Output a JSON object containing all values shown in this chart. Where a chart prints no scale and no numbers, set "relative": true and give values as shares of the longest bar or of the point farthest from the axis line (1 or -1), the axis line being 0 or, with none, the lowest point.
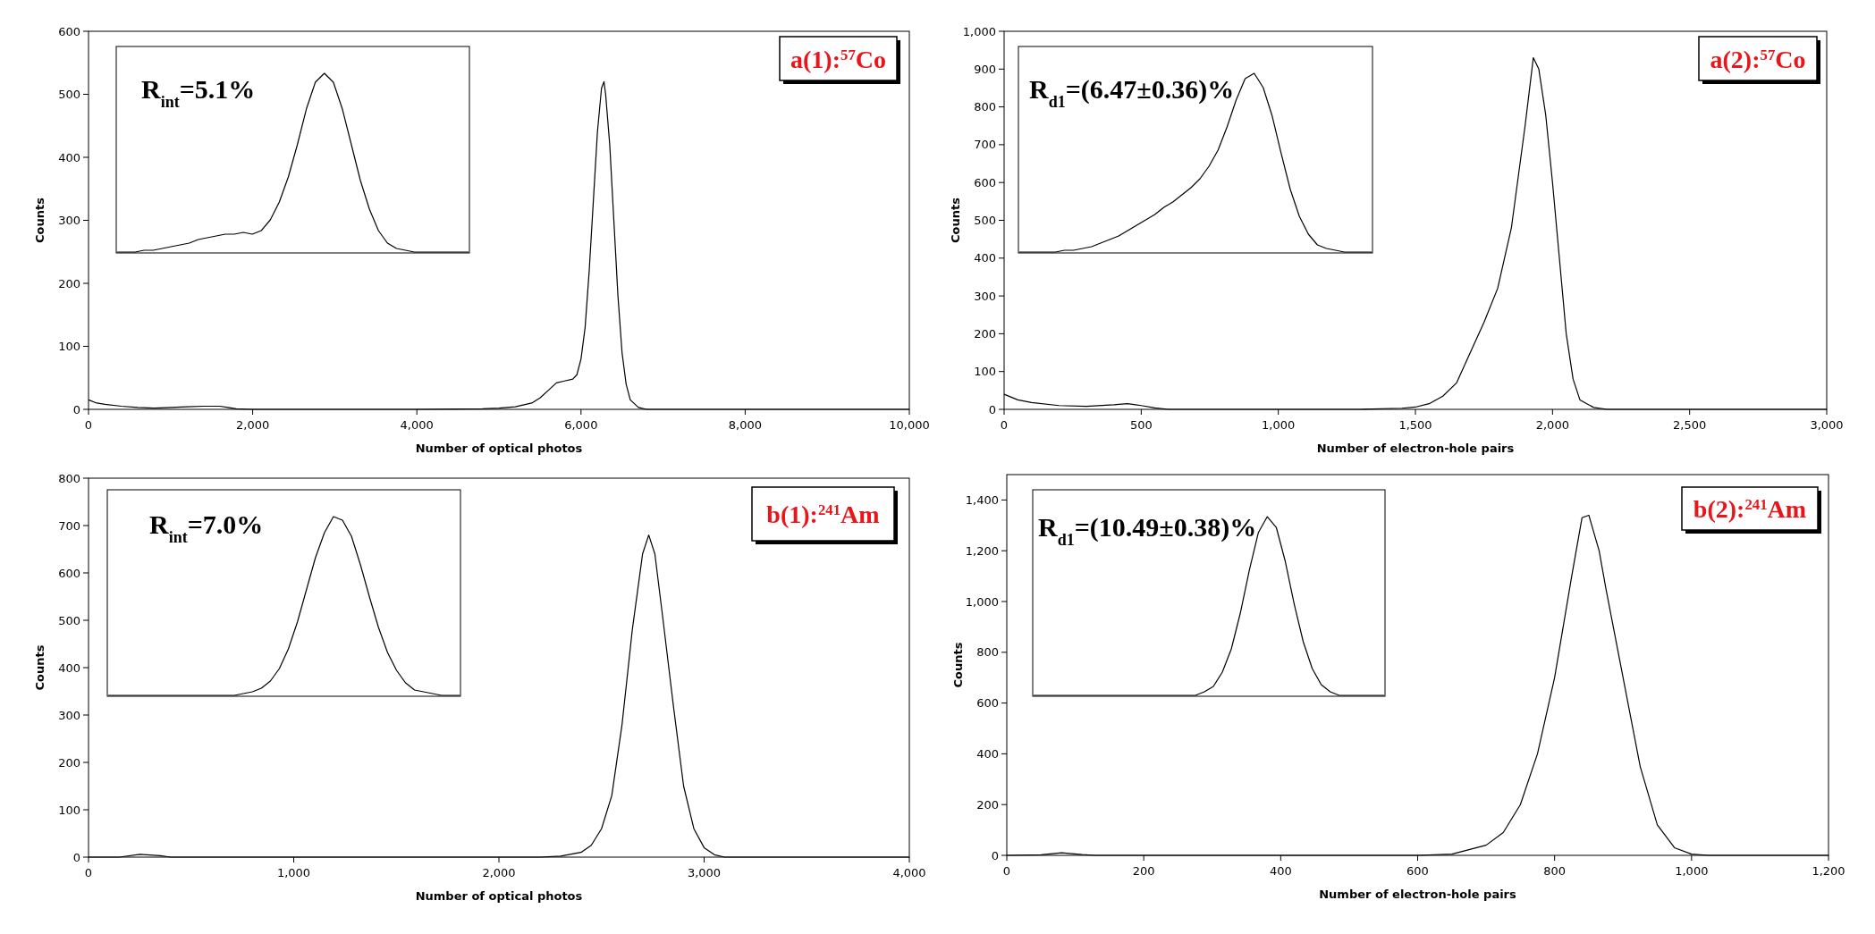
{
  "chart_data": [
    {
      "type": "line",
      "xlabel": "Number of optical photos",
      "ylabel": "Counts",
      "color": "#000000",
      "annotations": [
        "a(1):$^{57}$Co"
      ],
      "x": [
        0,
        100,
        200,
        400,
        600,
        800,
        1000,
        1200,
        1400,
        1600,
        1700,
        1800,
        2000,
        3000,
        4000,
        4800,
        5000,
        5200,
        5400,
        5500,
        5600,
        5700,
        5800,
        5900,
        5950,
        6000,
        6050,
        6100,
        6150,
        6200,
        6250,
        6280,
        6300,
        6350,
        6400,
        6450,
        6500,
        6550,
        6600,
        6700,
        6800,
        7000,
        10000
      ],
      "values": [
        15,
        10,
        8,
        5,
        3,
        2,
        3,
        4,
        5,
        5,
        3,
        1,
        0,
        0,
        0,
        1,
        2,
        4,
        10,
        18,
        30,
        42,
        45,
        48,
        55,
        80,
        130,
        220,
        330,
        440,
        510,
        520,
        500,
        420,
        300,
        180,
        90,
        40,
        15,
        3,
        0,
        0,
        0
      ],
      "xlim": [
        0,
        10000
      ],
      "ylim": [
        0,
        600
      ],
      "xticks": [
        0,
        {
          "value": 2000,
          "label": "2,000"
        },
        {
          "value": 4000,
          "label": "4,000"
        },
        {
          "value": 6000,
          "label": "6,000"
        },
        {
          "value": 8000,
          "label": "8,000"
        },
        {
          "value": 10000,
          "label": "10,000"
        }
      ],
      "yticks": [
        0,
        100,
        200,
        300,
        400,
        500,
        600
      ]
    },
    {
      "type": "line",
      "relative": true,
      "color": "#000000",
      "annotations": [
        "R$_{int}$=5.1%"
      ],
      "categories": [
        null,
        null,
        null,
        null,
        null,
        null,
        null,
        null,
        null,
        null,
        null,
        null,
        null,
        null,
        null,
        null,
        null,
        null,
        null,
        null,
        null,
        null,
        null,
        null,
        null,
        null,
        null,
        null,
        null,
        null,
        null,
        null,
        null,
        null,
        null,
        null,
        null,
        null,
        null,
        null
      ],
      "values": [
        0,
        0,
        0,
        0.01,
        0.01,
        0.02,
        0.03,
        0.04,
        0.05,
        0.07,
        0.08,
        0.09,
        0.1,
        0.1,
        0.11,
        0.1,
        0.12,
        0.18,
        0.28,
        0.42,
        0.6,
        0.8,
        0.95,
        1,
        0.95,
        0.8,
        0.6,
        0.4,
        0.24,
        0.12,
        0.05,
        0.02,
        0.01,
        0,
        0,
        0,
        0,
        0,
        0,
        0
      ]
    },
    {
      "type": "line",
      "xlabel": "Number of electron-hole pairs",
      "ylabel": "Counts",
      "color": "#000000",
      "annotations": [
        "a(2):$^{57}$Co"
      ],
      "x": [
        0,
        50,
        100,
        200,
        300,
        400,
        450,
        500,
        550,
        600,
        1300,
        1450,
        1500,
        1550,
        1600,
        1650,
        1700,
        1750,
        1800,
        1850,
        1900,
        1930,
        1950,
        1975,
        2000,
        2025,
        2050,
        2075,
        2100,
        2150,
        2200,
        3000
      ],
      "values": [
        40,
        25,
        18,
        10,
        8,
        12,
        15,
        10,
        4,
        0,
        0,
        3,
        6,
        15,
        35,
        70,
        150,
        230,
        320,
        480,
        750,
        930,
        900,
        780,
        600,
        400,
        200,
        80,
        25,
        5,
        0,
        0
      ],
      "xlim": [
        0,
        3000
      ],
      "ylim": [
        0,
        1000
      ],
      "xticks": [
        0,
        500,
        {
          "value": 1000,
          "label": "1,000"
        },
        {
          "value": 1500,
          "label": "1,500"
        },
        {
          "value": 2000,
          "label": "2,000"
        },
        {
          "value": 2500,
          "label": "2,500"
        },
        {
          "value": 3000,
          "label": "3,000"
        }
      ],
      "yticks": [
        0,
        100,
        200,
        300,
        400,
        500,
        600,
        700,
        800,
        900,
        {
          "value": 1000,
          "label": "1,000"
        }
      ]
    },
    {
      "type": "line",
      "relative": true,
      "color": "#000000",
      "annotations": [
        "R$_{d1}$=(6.47±0.36)%"
      ],
      "categories": [
        null,
        null,
        null,
        null,
        null,
        null,
        null,
        null,
        null,
        null,
        null,
        null,
        null,
        null,
        null,
        null,
        null,
        null,
        null,
        null,
        null,
        null,
        null,
        null,
        null,
        null,
        null,
        null,
        null,
        null,
        null,
        null,
        null,
        null,
        null,
        null,
        null,
        null,
        null,
        null
      ],
      "values": [
        0,
        0,
        0,
        0,
        0,
        0.01,
        0.01,
        0.02,
        0.03,
        0.05,
        0.07,
        0.09,
        0.12,
        0.15,
        0.18,
        0.21,
        0.25,
        0.28,
        0.32,
        0.36,
        0.41,
        0.48,
        0.57,
        0.7,
        0.85,
        0.97,
        1,
        0.92,
        0.76,
        0.55,
        0.35,
        0.2,
        0.1,
        0.04,
        0.02,
        0.01,
        0,
        0,
        0,
        0
      ]
    },
    {
      "type": "line",
      "xlabel": "Number of optical photos",
      "ylabel": "Counts",
      "color": "#000000",
      "annotations": [
        "b(1):$^{241}$Am"
      ],
      "x": [
        0,
        150,
        250,
        350,
        400,
        2200,
        2300,
        2400,
        2450,
        2500,
        2550,
        2600,
        2650,
        2700,
        2730,
        2760,
        2800,
        2850,
        2900,
        2950,
        3000,
        3050,
        3100,
        4000
      ],
      "values": [
        0,
        0,
        6,
        3,
        0,
        0,
        2,
        10,
        25,
        60,
        130,
        280,
        480,
        640,
        680,
        640,
        500,
        320,
        150,
        60,
        20,
        5,
        0,
        0
      ],
      "xlim": [
        0,
        4000
      ],
      "ylim": [
        0,
        800
      ],
      "xticks": [
        0,
        {
          "value": 1000,
          "label": "1,000"
        },
        {
          "value": 2000,
          "label": "2,000"
        },
        {
          "value": 3000,
          "label": "3,000"
        },
        {
          "value": 4000,
          "label": "4,000"
        }
      ],
      "yticks": [
        0,
        100,
        200,
        300,
        400,
        500,
        600,
        700,
        800
      ]
    },
    {
      "type": "line",
      "relative": true,
      "color": "#000000",
      "annotations": [
        "R$_{int}$=7.0%"
      ],
      "categories": [
        null,
        null,
        null,
        null,
        null,
        null,
        null,
        null,
        null,
        null,
        null,
        null,
        null,
        null,
        null,
        null,
        null,
        null,
        null,
        null,
        null,
        null,
        null,
        null,
        null,
        null,
        null,
        null,
        null,
        null,
        null,
        null,
        null,
        null,
        null,
        null,
        null,
        null,
        null,
        null
      ],
      "values": [
        0,
        0,
        0,
        0,
        0,
        0,
        0,
        0,
        0,
        0,
        0,
        0,
        0,
        0,
        0,
        0.01,
        0.02,
        0.04,
        0.08,
        0.15,
        0.26,
        0.41,
        0.59,
        0.77,
        0.91,
        1,
        0.98,
        0.89,
        0.73,
        0.55,
        0.38,
        0.24,
        0.14,
        0.07,
        0.03,
        0.02,
        0.01,
        0,
        0,
        0
      ]
    },
    {
      "type": "line",
      "xlabel": "Number of electron-hole pairs",
      "ylabel": "Counts",
      "color": "#000000",
      "annotations": [
        "b(2):$^{241}$Am"
      ],
      "x": [
        0,
        50,
        80,
        110,
        130,
        600,
        650,
        700,
        725,
        750,
        775,
        800,
        825,
        840,
        850,
        865,
        875,
        900,
        925,
        950,
        975,
        1000,
        1025,
        1200
      ],
      "values": [
        0,
        2,
        10,
        3,
        0,
        0,
        5,
        40,
        90,
        200,
        400,
        700,
        1100,
        1330,
        1340,
        1200,
        1050,
        700,
        350,
        120,
        30,
        5,
        0,
        0
      ],
      "xlim": [
        0,
        1200
      ],
      "ylim": [
        0,
        1500
      ],
      "xticks": [
        0,
        200,
        400,
        600,
        800,
        {
          "value": 1000,
          "label": "1,000"
        },
        {
          "value": 1200,
          "label": "1,200"
        }
      ],
      "yticks": [
        0,
        200,
        400,
        600,
        800,
        {
          "value": 1000,
          "label": "1,000"
        },
        {
          "value": 1200,
          "label": "1,200"
        },
        {
          "value": 1400,
          "label": "1,400"
        }
      ]
    },
    {
      "type": "line",
      "relative": true,
      "color": "#000000",
      "annotations": [
        "R$_{d1}$=(10.49±0.38)%"
      ],
      "categories": [
        null,
        null,
        null,
        null,
        null,
        null,
        null,
        null,
        null,
        null,
        null,
        null,
        null,
        null,
        null,
        null,
        null,
        null,
        null,
        null,
        null,
        null,
        null,
        null,
        null,
        null,
        null,
        null,
        null,
        null,
        null,
        null,
        null,
        null,
        null,
        null,
        null,
        null,
        null,
        null
      ],
      "values": [
        0,
        0,
        0,
        0,
        0,
        0,
        0,
        0,
        0,
        0,
        0,
        0,
        0,
        0,
        0,
        0,
        0,
        0,
        0,
        0.02,
        0.05,
        0.13,
        0.26,
        0.46,
        0.7,
        0.91,
        1,
        0.94,
        0.75,
        0.51,
        0.3,
        0.15,
        0.06,
        0.02,
        0,
        0,
        0,
        0,
        0,
        0
      ]
    }
  ]
}
